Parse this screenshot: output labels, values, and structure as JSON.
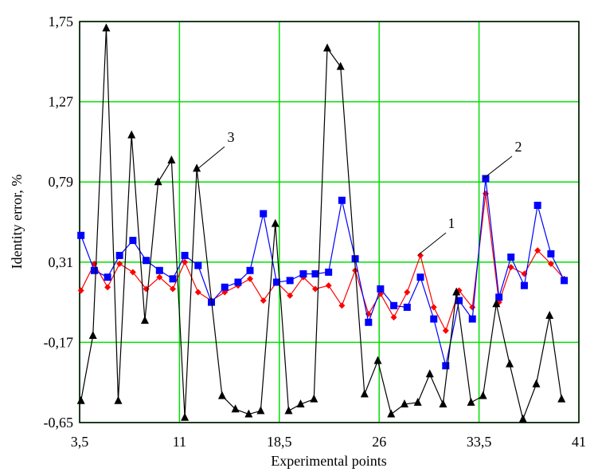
{
  "chart_data": {
    "type": "line",
    "xlabel": "Experimental points",
    "ylabel": "Identity error, %",
    "xlim": [
      3.5,
      41
    ],
    "ylim": [
      -0.65,
      1.75
    ],
    "xticks": [
      {
        "value": 3.5,
        "label": "3,5"
      },
      11,
      {
        "value": 18.5,
        "label": "18,5"
      },
      26,
      {
        "value": 33.5,
        "label": "33,5"
      },
      41
    ],
    "yticks": [
      {
        "value": -0.65,
        "label": "-0,65"
      },
      {
        "value": -0.17,
        "label": "-0,17"
      },
      {
        "value": 0.31,
        "label": "0,31"
      },
      {
        "value": 0.79,
        "label": "0,79"
      },
      {
        "value": 1.27,
        "label": "1,27"
      },
      {
        "value": 1.75,
        "label": "1,75"
      }
    ],
    "grid": true,
    "grid_color": "#00e000",
    "x": [
      3.6,
      4.6,
      5.6,
      6.5,
      7.5,
      8.5,
      9.5,
      10.5,
      11.4,
      12.4,
      13.4,
      14.4,
      15.4,
      16.3,
      17.3,
      18.3,
      19.3,
      20.3,
      21.2,
      22.2,
      23.2,
      24.2,
      25.2,
      26.1,
      27.1,
      28.1,
      29.1,
      30.1,
      31.0,
      32.0,
      33.0,
      34.0,
      35.0,
      35.9,
      36.9,
      37.9,
      38.9,
      39.9
    ],
    "series": [
      {
        "name": "1",
        "color": "#ff0000",
        "marker": "diamond",
        "values": [
          0.14,
          0.3,
          0.16,
          0.3,
          0.25,
          0.15,
          0.22,
          0.15,
          0.31,
          0.13,
          0.08,
          0.13,
          0.17,
          0.21,
          0.08,
          0.19,
          0.11,
          0.22,
          0.15,
          0.17,
          0.05,
          0.26,
          0.0,
          0.12,
          -0.02,
          0.13,
          0.35,
          0.04,
          -0.1,
          0.14,
          0.04,
          0.72,
          0.07,
          0.28,
          0.24,
          0.38,
          0.3,
          0.21
        ]
      },
      {
        "name": "2",
        "color": "#0000ff",
        "marker": "square",
        "values": [
          0.47,
          0.26,
          0.22,
          0.35,
          0.44,
          0.32,
          0.26,
          0.21,
          0.35,
          0.29,
          0.07,
          0.16,
          0.19,
          0.26,
          0.6,
          0.19,
          0.2,
          0.24,
          0.24,
          0.25,
          0.68,
          0.33,
          -0.05,
          0.15,
          0.05,
          0.04,
          0.22,
          -0.03,
          -0.31,
          0.08,
          -0.03,
          0.81,
          0.1,
          0.34,
          0.17,
          0.65,
          0.36,
          0.2
        ]
      },
      {
        "name": "3",
        "color": "#000000",
        "marker": "triangle",
        "x": [
          3.6,
          4.5,
          5.5,
          6.4,
          7.4,
          8.4,
          9.4,
          10.4,
          11.4,
          12.3,
          14.2,
          15.2,
          16.2,
          17.1,
          18.2,
          19.2,
          20.1,
          21.1,
          22.1,
          23.1,
          24.9,
          25.9,
          26.9,
          27.9,
          28.9,
          29.8,
          30.8,
          31.8,
          32.9,
          33.8,
          34.8,
          35.8,
          36.8,
          37.8,
          38.8,
          39.7
        ],
        "values": [
          -0.52,
          -0.13,
          1.71,
          -0.52,
          1.07,
          -0.04,
          0.79,
          0.92,
          -0.62,
          0.87,
          -0.49,
          -0.57,
          -0.6,
          -0.58,
          0.54,
          -0.58,
          -0.54,
          -0.51,
          1.59,
          1.48,
          -0.48,
          -0.28,
          -0.6,
          -0.54,
          -0.53,
          -0.36,
          -0.54,
          0.13,
          -0.53,
          -0.49,
          0.06,
          -0.3,
          -0.63,
          -0.42,
          -0.01,
          -0.51
        ]
      }
    ]
  }
}
